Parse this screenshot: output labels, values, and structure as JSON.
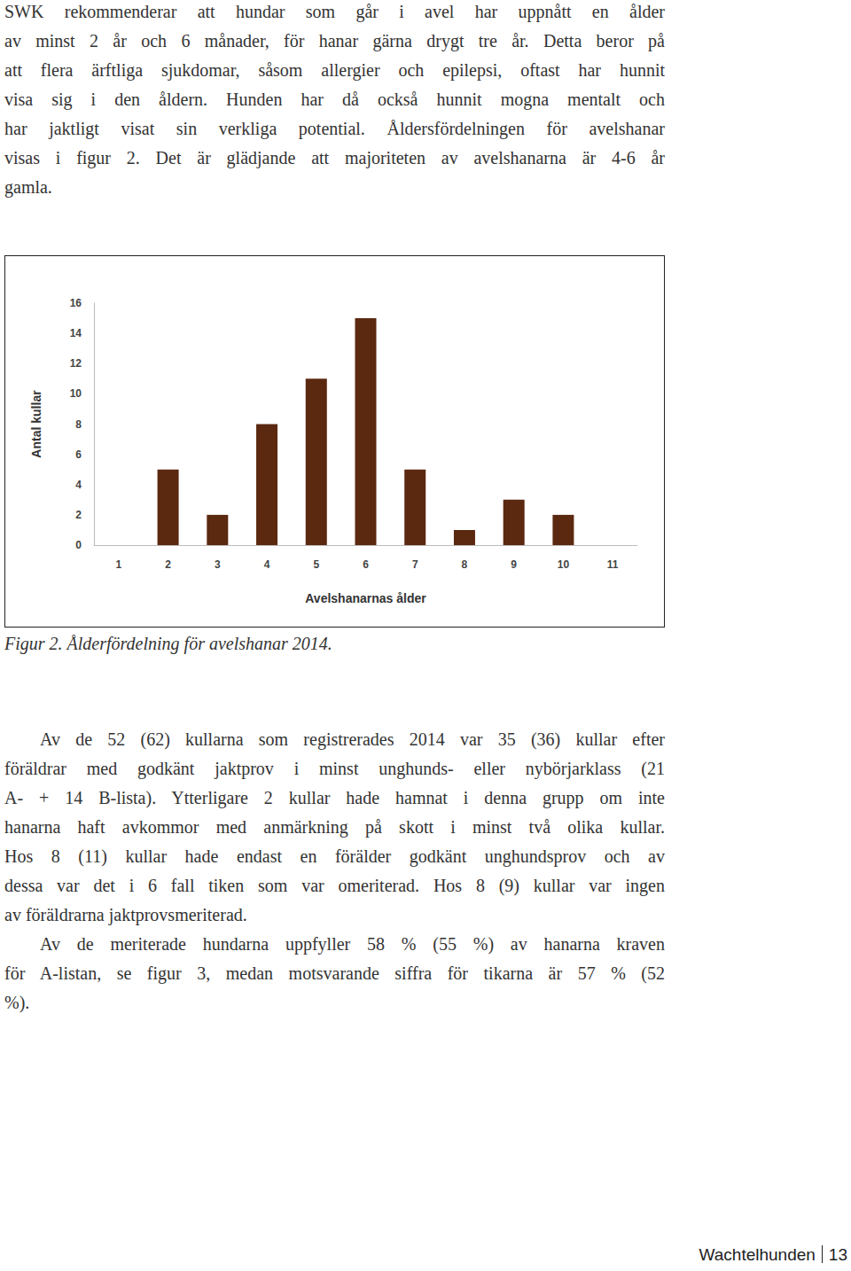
{
  "document": {
    "paragraphs_before_figure": [
      [
        "SWK rekommenderar att hundar som går i avel har uppnått en ålder",
        "av minst 2 år och 6 månader, för hanar gärna drygt tre år. Detta beror på",
        "att flera ärftliga sjukdomar, såsom allergier och epilepsi, oftast har hunnit",
        "visa sig i den åldern. Hunden har då också hunnit mogna mentalt och",
        "har jaktligt visat sin verkliga potential. Åldersfördelningen för avelshanar",
        "visas i figur 2. Det är glädjande att majoriteten av avelshanarna är 4-6 år",
        "gamla."
      ]
    ],
    "caption": "Figur 2. Ålderfördelning för avelshanar 2014.",
    "paragraphs_after_figure": [
      [
        "Av de 52 (62) kullarna som registrerades 2014 var 35 (36) kullar efter",
        "föräldrar med godkänt jaktprov i minst unghunds- eller nybörjarklass (21",
        "A- + 14 B-lista). Ytterligare 2 kullar hade hamnat i denna grupp om inte",
        "hanarna haft avkommor med anmärkning på skott i minst två olika kullar.",
        "Hos 8 (11) kullar hade endast en förälder godkänt unghundsprov och av",
        "dessa var det i 6 fall tiken som var omeriterad. Hos 8 (9) kullar var ingen",
        "av föräldrarna jaktprovsmeriterad."
      ],
      [
        "Av de meriterade hundarna uppfyller 58 % (55 %) av hanarna kraven",
        "för A-listan, se figur 3, medan motsvarande siffra för tikarna är 57 % (52",
        "%)."
      ]
    ],
    "footer": {
      "publication": "Wachtelhunden",
      "page": "13"
    }
  },
  "chart_data": {
    "type": "bar",
    "x_label": "Avelshanarnas ålder",
    "y_label": "Antal kullar",
    "categories": [
      "1",
      "2",
      "3",
      "4",
      "5",
      "6",
      "7",
      "8",
      "9",
      "10",
      "11"
    ],
    "values": [
      0,
      5,
      2,
      8,
      11,
      15,
      5,
      1,
      3,
      2,
      0
    ],
    "color": "#5b2810",
    "ylim": [
      0,
      16
    ],
    "yticks": [
      0,
      2,
      4,
      6,
      8,
      10,
      12,
      14,
      16
    ],
    "grid": false
  }
}
